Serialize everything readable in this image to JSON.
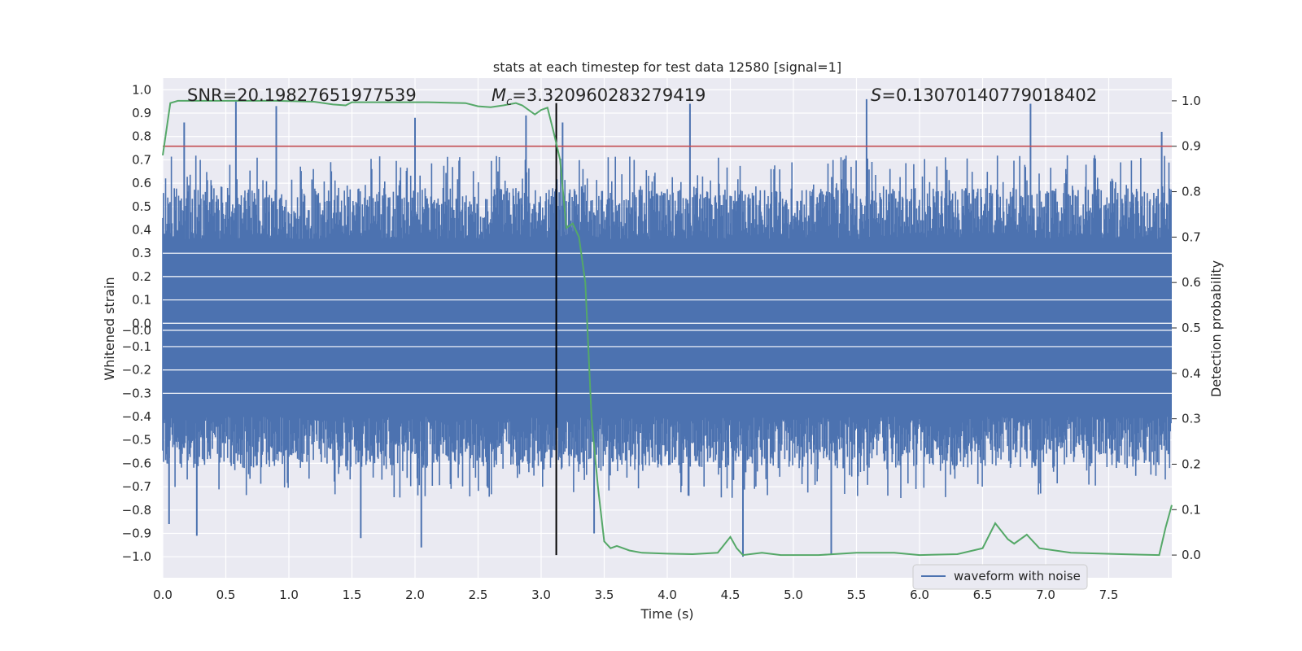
{
  "chart_data": {
    "type": "line",
    "title": "stats at each timestep for test data 12580 [signal=1]",
    "xlabel": "Time (s)",
    "ylabel_left": "Whitened strain",
    "ylabel_right": "Detection probability",
    "xlim": [
      0.0,
      8.0
    ],
    "ylim_left": [
      -1.09,
      1.05
    ],
    "ylim_right": [
      -0.05,
      1.05
    ],
    "x_ticks": [
      "0.0",
      "0.5",
      "1.0",
      "1.5",
      "2.0",
      "2.5",
      "3.0",
      "3.5",
      "4.0",
      "4.5",
      "5.0",
      "5.5",
      "6.0",
      "6.5",
      "7.0",
      "7.5"
    ],
    "y_left_ticks": [
      "1.0",
      "0.9",
      "0.8",
      "0.7",
      "0.6",
      "0.5",
      "0.4",
      "0.3",
      "0.2",
      "0.1",
      "0.0",
      "-0.0",
      "-0.1",
      "-0.2",
      "-0.3",
      "-0.4",
      "-0.5",
      "-0.6",
      "-0.7",
      "-0.8",
      "-0.9",
      "-1.0"
    ],
    "y_left_tick_values": [
      1.0,
      0.9,
      0.8,
      0.7,
      0.6,
      0.5,
      0.4,
      0.3,
      0.2,
      0.1,
      0.0,
      -0.03,
      -0.1,
      -0.2,
      -0.3,
      -0.4,
      -0.5,
      -0.6,
      -0.7,
      -0.8,
      -0.9,
      -1.0
    ],
    "y_right_ticks": [
      "1.0",
      "0.9",
      "0.8",
      "0.7",
      "0.6",
      "0.5",
      "0.4",
      "0.3",
      "0.2",
      "0.1",
      "0.0"
    ],
    "annotations": {
      "snr": "SNR=20.19827651977539",
      "mc_symbol": "M",
      "mc_subscript": "c",
      "mc_value": "=3.320960283279419",
      "s_symbol": "S",
      "s_value": "=0.13070140779018402"
    },
    "threshold": 0.9,
    "merger_time": 3.12,
    "series": [
      {
        "name": "waveform with noise",
        "color": "#4c72b0",
        "axis": "left",
        "core_amplitude": 0.36,
        "spike_count": 1400,
        "notable_peaks": [
          {
            "x": 0.17,
            "y": 0.86
          },
          {
            "x": 0.58,
            "y": 0.95
          },
          {
            "x": 0.9,
            "y": 0.93
          },
          {
            "x": 2.0,
            "y": 0.88
          },
          {
            "x": 2.88,
            "y": 0.89
          },
          {
            "x": 3.17,
            "y": 0.86
          },
          {
            "x": 4.18,
            "y": 0.94
          },
          {
            "x": 5.58,
            "y": 0.96
          },
          {
            "x": 6.88,
            "y": 0.94
          },
          {
            "x": 7.92,
            "y": 0.82
          },
          {
            "x": 0.27,
            "y": -0.91
          },
          {
            "x": 1.57,
            "y": -0.92
          },
          {
            "x": 2.05,
            "y": -0.96
          },
          {
            "x": 4.6,
            "y": -1.0
          },
          {
            "x": 5.3,
            "y": -0.99
          },
          {
            "x": 3.42,
            "y": -0.9
          },
          {
            "x": 0.05,
            "y": -0.86
          }
        ]
      },
      {
        "name": "detection probability",
        "color": "#55a868",
        "axis": "right",
        "x": [
          0.0,
          0.06,
          0.12,
          0.3,
          0.6,
          0.9,
          1.2,
          1.35,
          1.45,
          1.5,
          1.8,
          2.1,
          2.4,
          2.5,
          2.6,
          2.7,
          2.8,
          2.85,
          2.95,
          3.0,
          3.05,
          3.1,
          3.15,
          3.2,
          3.25,
          3.3,
          3.35,
          3.4,
          3.45,
          3.5,
          3.55,
          3.6,
          3.7,
          3.8,
          4.0,
          4.2,
          4.4,
          4.5,
          4.55,
          4.6,
          4.75,
          4.9,
          5.2,
          5.5,
          5.8,
          6.0,
          6.3,
          6.5,
          6.6,
          6.7,
          6.75,
          6.85,
          6.95,
          7.2,
          7.6,
          7.9,
          7.95,
          8.0
        ],
        "y": [
          0.88,
          0.995,
          1.0,
          1.0,
          1.0,
          1.0,
          0.998,
          0.992,
          0.99,
          0.997,
          0.997,
          0.997,
          0.995,
          0.988,
          0.986,
          0.99,
          0.995,
          0.99,
          0.97,
          0.98,
          0.985,
          0.93,
          0.87,
          0.72,
          0.73,
          0.7,
          0.6,
          0.3,
          0.15,
          0.03,
          0.015,
          0.02,
          0.01,
          0.005,
          0.003,
          0.002,
          0.005,
          0.04,
          0.015,
          0.0,
          0.005,
          0.0,
          0.0,
          0.005,
          0.005,
          0.0,
          0.002,
          0.015,
          0.07,
          0.035,
          0.025,
          0.045,
          0.015,
          0.005,
          0.002,
          0.0,
          0.06,
          0.11
        ]
      }
    ],
    "legend": {
      "label": "waveform with noise",
      "position": "lower-right"
    }
  }
}
